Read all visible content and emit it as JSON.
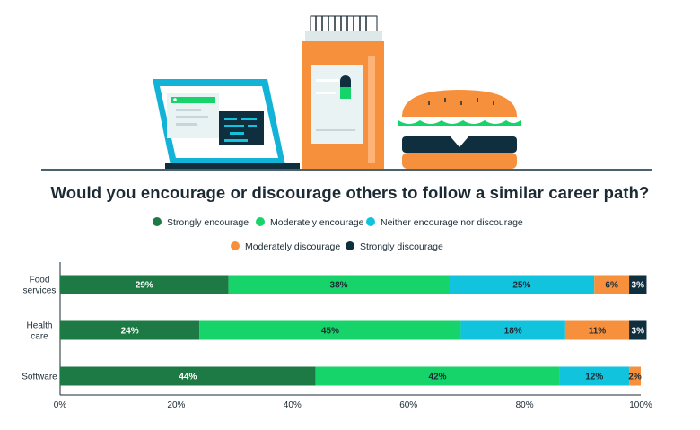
{
  "chart_data": {
    "type": "bar",
    "orientation": "horizontal",
    "stacked": true,
    "title": "Would you encourage or discourage others to follow a similar career path?",
    "categories": [
      [
        "Food",
        "services"
      ],
      [
        "Health",
        "care"
      ],
      [
        "Software"
      ]
    ],
    "series": [
      {
        "name": "Strongly encourage",
        "color": "#1d7a44",
        "values": [
          29,
          24,
          44
        ]
      },
      {
        "name": "Moderately encourage",
        "color": "#16d46a",
        "values": [
          38,
          45,
          42
        ]
      },
      {
        "name": "Neither encourage nor discourage",
        "color": "#12c3dd",
        "values": [
          25,
          18,
          12
        ]
      },
      {
        "name": "Moderately discourage",
        "color": "#f7903c",
        "values": [
          6,
          11,
          2
        ]
      },
      {
        "name": "Strongly discourage",
        "color": "#0f2f3f",
        "values": [
          3,
          3,
          null
        ]
      }
    ],
    "xlim": [
      0,
      100
    ],
    "xticks": [
      "0%",
      "20%",
      "40%",
      "60%",
      "80%",
      "100%"
    ],
    "value_suffix": "%",
    "legend_position": "top-center",
    "grid": false
  }
}
